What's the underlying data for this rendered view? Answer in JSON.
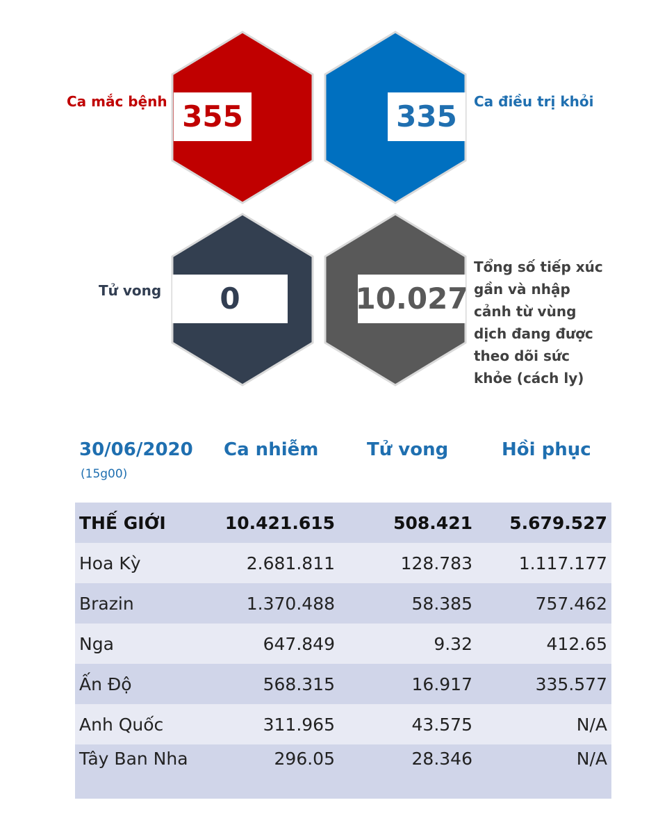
{
  "stats": {
    "cases": {
      "label": "Ca mắc bệnh",
      "value": "355",
      "color": "#c00000"
    },
    "recovered": {
      "label": "Ca điều trị khỏi",
      "value": "335",
      "color": "#0070c0"
    },
    "deaths": {
      "label": "Tử vong",
      "value": "0",
      "color": "#333f50"
    },
    "monitoring": {
      "label_lines": [
        "Tổng số tiếp xúc",
        "gần và nhập",
        "cảnh từ vùng",
        "dịch đang được",
        "theo dõi sức",
        "khỏe (cách ly)"
      ],
      "value": "10.027",
      "color": "#595959"
    }
  },
  "table": {
    "date": "30/06/2020",
    "time": "(15g00)",
    "headers": {
      "cases": "Ca nhiễm",
      "deaths": "Tử vong",
      "recovered": "Hồi phục"
    },
    "rows": [
      {
        "name": "THẾ GIỚI",
        "cases": "10.421.615",
        "deaths": "508.421",
        "recovered": "5.679.527"
      },
      {
        "name": "Hoa Kỳ",
        "cases": "2.681.811",
        "deaths": "128.783",
        "recovered": "1.117.177"
      },
      {
        "name": "Brazin",
        "cases": "1.370.488",
        "deaths": "58.385",
        "recovered": "757.462"
      },
      {
        "name": "Nga",
        "cases": "647.849",
        "deaths": "9.32",
        "recovered": "412.65"
      },
      {
        "name": "Ấn Độ",
        "cases": "568.315",
        "deaths": "16.917",
        "recovered": "335.577"
      },
      {
        "name": "Anh Quốc",
        "cases": "311.965",
        "deaths": "43.575",
        "recovered": "N/A"
      },
      {
        "name": "Tây Ban Nha",
        "cases": "296.05",
        "deaths": "28.346",
        "recovered": "N/A"
      }
    ]
  }
}
